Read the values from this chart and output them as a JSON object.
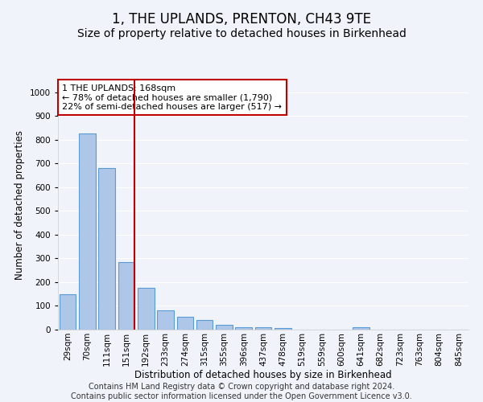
{
  "title": "1, THE UPLANDS, PRENTON, CH43 9TE",
  "subtitle": "Size of property relative to detached houses in Birkenhead",
  "xlabel": "Distribution of detached houses by size in Birkenhead",
  "ylabel": "Number of detached properties",
  "categories": [
    "29sqm",
    "70sqm",
    "111sqm",
    "151sqm",
    "192sqm",
    "233sqm",
    "274sqm",
    "315sqm",
    "355sqm",
    "396sqm",
    "437sqm",
    "478sqm",
    "519sqm",
    "559sqm",
    "600sqm",
    "641sqm",
    "682sqm",
    "723sqm",
    "763sqm",
    "804sqm",
    "845sqm"
  ],
  "values": [
    150,
    825,
    680,
    285,
    175,
    80,
    55,
    42,
    20,
    10,
    10,
    8,
    0,
    0,
    0,
    10,
    0,
    0,
    0,
    0,
    0
  ],
  "bar_color": "#aec6e8",
  "bar_edge_color": "#5b9bd5",
  "vline_color": "#c00000",
  "annotation_text": "1 THE UPLANDS: 168sqm\n← 78% of detached houses are smaller (1,790)\n22% of semi-detached houses are larger (517) →",
  "annotation_box_color": "#ffffff",
  "annotation_box_edge_color": "#c00000",
  "ylim": [
    0,
    1050
  ],
  "yticks": [
    0,
    100,
    200,
    300,
    400,
    500,
    600,
    700,
    800,
    900,
    1000
  ],
  "footer_line1": "Contains HM Land Registry data © Crown copyright and database right 2024.",
  "footer_line2": "Contains public sector information licensed under the Open Government Licence v3.0.",
  "background_color": "#f0f4fa",
  "grid_color": "#ffffff",
  "title_fontsize": 12,
  "subtitle_fontsize": 10,
  "axis_label_fontsize": 8.5,
  "tick_fontsize": 7.5,
  "annotation_fontsize": 8,
  "footer_fontsize": 7
}
